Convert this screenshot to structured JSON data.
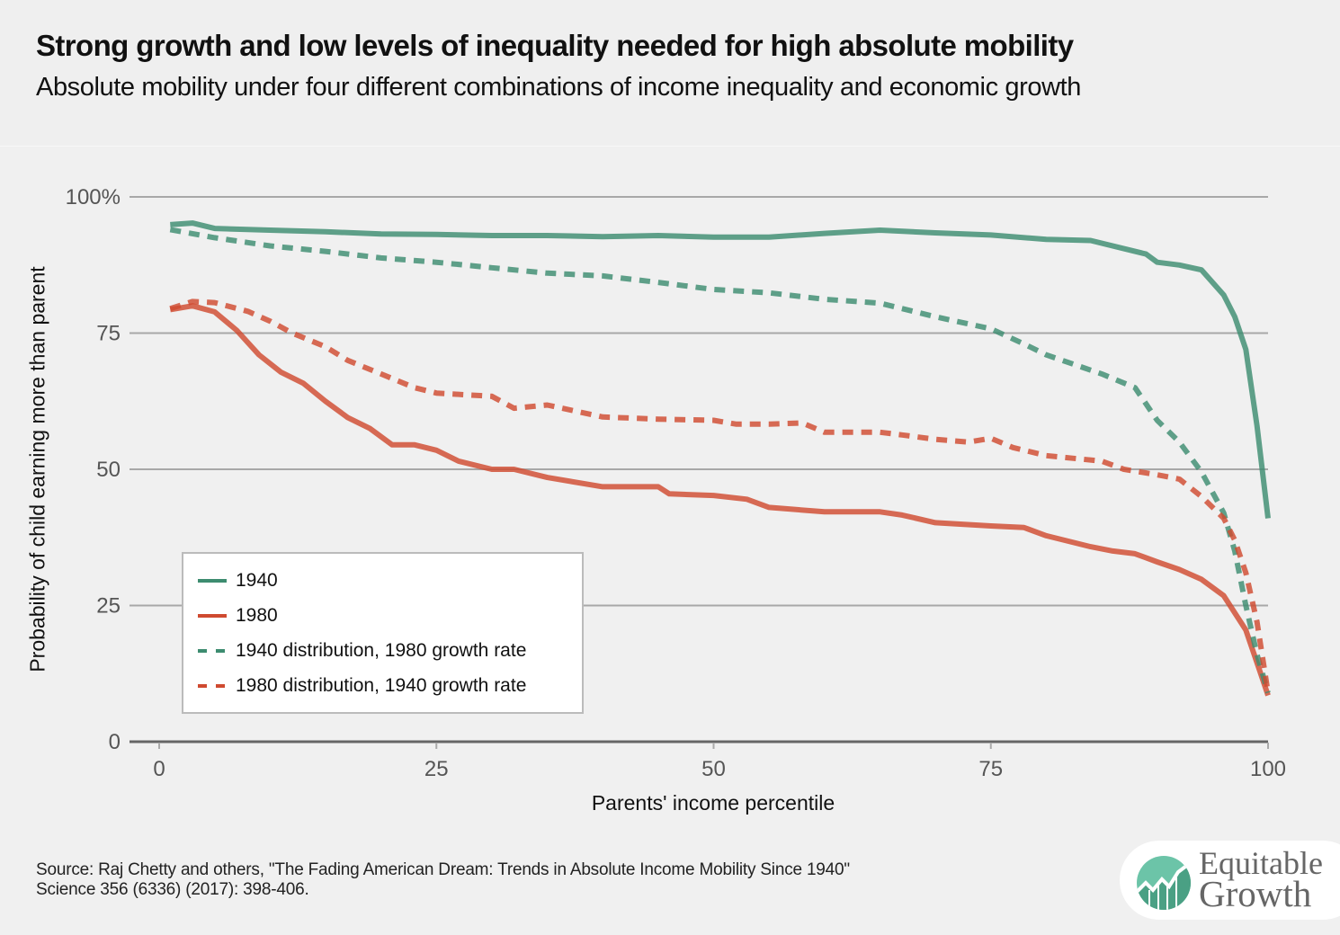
{
  "header": {
    "title": "Strong growth and low levels of inequality needed for high absolute mobility",
    "subtitle": "Absolute mobility under four different combinations of income inequality and economic growth"
  },
  "footer": {
    "source_line1": "Source: Raj Chetty and others, \"The Fading American Dream: Trends in Absolute Income Mobility Since 1940\"",
    "source_line2": "Science 356 (6336) (2017): 398-406.",
    "logo": {
      "line1": "Equitable",
      "line2": "Growth",
      "icon": "rising-chart-circle-icon"
    }
  },
  "colors": {
    "green": "#3d8c70",
    "red": "#cf4a30",
    "grid": "#a8a8a8",
    "axis": "#666666",
    "tick_text": "#555555"
  },
  "chart_data": {
    "type": "line",
    "title": "Strong growth and low levels of inequality needed for high absolute mobility",
    "subtitle": "Absolute mobility under four different combinations of income inequality and economic growth",
    "xlabel": "Parents' income percentile",
    "ylabel": "Probability of child earning more than parent",
    "xlim": [
      0,
      100
    ],
    "ylim": [
      0,
      100
    ],
    "xticks": [
      0,
      25,
      50,
      75,
      100
    ],
    "xtick_labels": [
      "0",
      "25",
      "50",
      "75",
      "100"
    ],
    "yticks": [
      0,
      25,
      50,
      75,
      100
    ],
    "ytick_labels": [
      "0",
      "25",
      "50",
      "75",
      "100%"
    ],
    "grid": "horizontal",
    "legend_position": "bottom-left",
    "series": [
      {
        "name": "1940",
        "style": "solid",
        "color": "green",
        "x": [
          1,
          3,
          5,
          10,
          15,
          20,
          25,
          30,
          35,
          40,
          45,
          50,
          55,
          60,
          65,
          70,
          75,
          80,
          84,
          87,
          89,
          90,
          92,
          94,
          96,
          97,
          98,
          99,
          100
        ],
        "values": [
          94.9,
          95.2,
          94.2,
          93.9,
          93.6,
          93.2,
          93.1,
          92.9,
          92.9,
          92.7,
          92.9,
          92.6,
          92.6,
          93.3,
          93.9,
          93.4,
          93.0,
          92.2,
          92.0,
          90.5,
          89.5,
          88.0,
          87.5,
          86.6,
          82,
          78,
          72,
          58,
          41
        ]
      },
      {
        "name": "1980",
        "style": "solid",
        "color": "red",
        "x": [
          1,
          3,
          5,
          7,
          9,
          11,
          13,
          15,
          17,
          19,
          21,
          23,
          25,
          27,
          30,
          32,
          35,
          40,
          45,
          46,
          50,
          53,
          55,
          60,
          65,
          67,
          70,
          75,
          78,
          80,
          84,
          86,
          88,
          90,
          92,
          94,
          96,
          98,
          99,
          100
        ],
        "values": [
          79.3,
          80,
          78.9,
          75.5,
          71,
          67.8,
          65.8,
          62.5,
          59.5,
          57.5,
          54.5,
          54.5,
          53.5,
          51.5,
          50,
          50,
          48.5,
          46.8,
          46.8,
          45.5,
          45.2,
          44.5,
          43,
          42.2,
          42.2,
          41.6,
          40.2,
          39.6,
          39.3,
          37.8,
          35.8,
          35,
          34.5,
          33,
          31.6,
          29.8,
          26.8,
          20.5,
          14.5,
          8.5
        ]
      },
      {
        "name": "1940 distribution, 1980 growth rate",
        "style": "dashed",
        "color": "green",
        "x": [
          1,
          5,
          10,
          15,
          20,
          25,
          30,
          35,
          40,
          45,
          50,
          55,
          60,
          65,
          70,
          75,
          78,
          80,
          85,
          88,
          90,
          92,
          94,
          96,
          97,
          98,
          99,
          100
        ],
        "values": [
          94,
          92.5,
          91,
          90,
          88.8,
          88,
          87,
          86,
          85.5,
          84.3,
          83,
          82.4,
          81.2,
          80.5,
          78,
          75.8,
          73,
          71,
          67.5,
          65,
          59,
          55,
          49.5,
          42,
          35,
          25,
          16,
          9
        ]
      },
      {
        "name": "1980 distribution, 1940 growth rate",
        "style": "dashed",
        "color": "red",
        "x": [
          1,
          3,
          5,
          8,
          10,
          12,
          15,
          17,
          20,
          23,
          25,
          30,
          32,
          35,
          40,
          45,
          50,
          52,
          55,
          58,
          60,
          65,
          67,
          70,
          73,
          75,
          77,
          80,
          85,
          87,
          90,
          92,
          94,
          96,
          97,
          98,
          99,
          100
        ],
        "values": [
          79.5,
          80.8,
          80.6,
          79,
          77.2,
          75,
          72.5,
          70,
          67.5,
          65,
          64,
          63.4,
          61.2,
          61.8,
          59.6,
          59.2,
          59,
          58.3,
          58.3,
          58.5,
          56.8,
          56.8,
          56.3,
          55.5,
          55,
          55.7,
          54,
          52.5,
          51.5,
          50,
          49,
          48.2,
          45,
          41,
          37,
          31,
          22,
          9
        ]
      }
    ]
  }
}
